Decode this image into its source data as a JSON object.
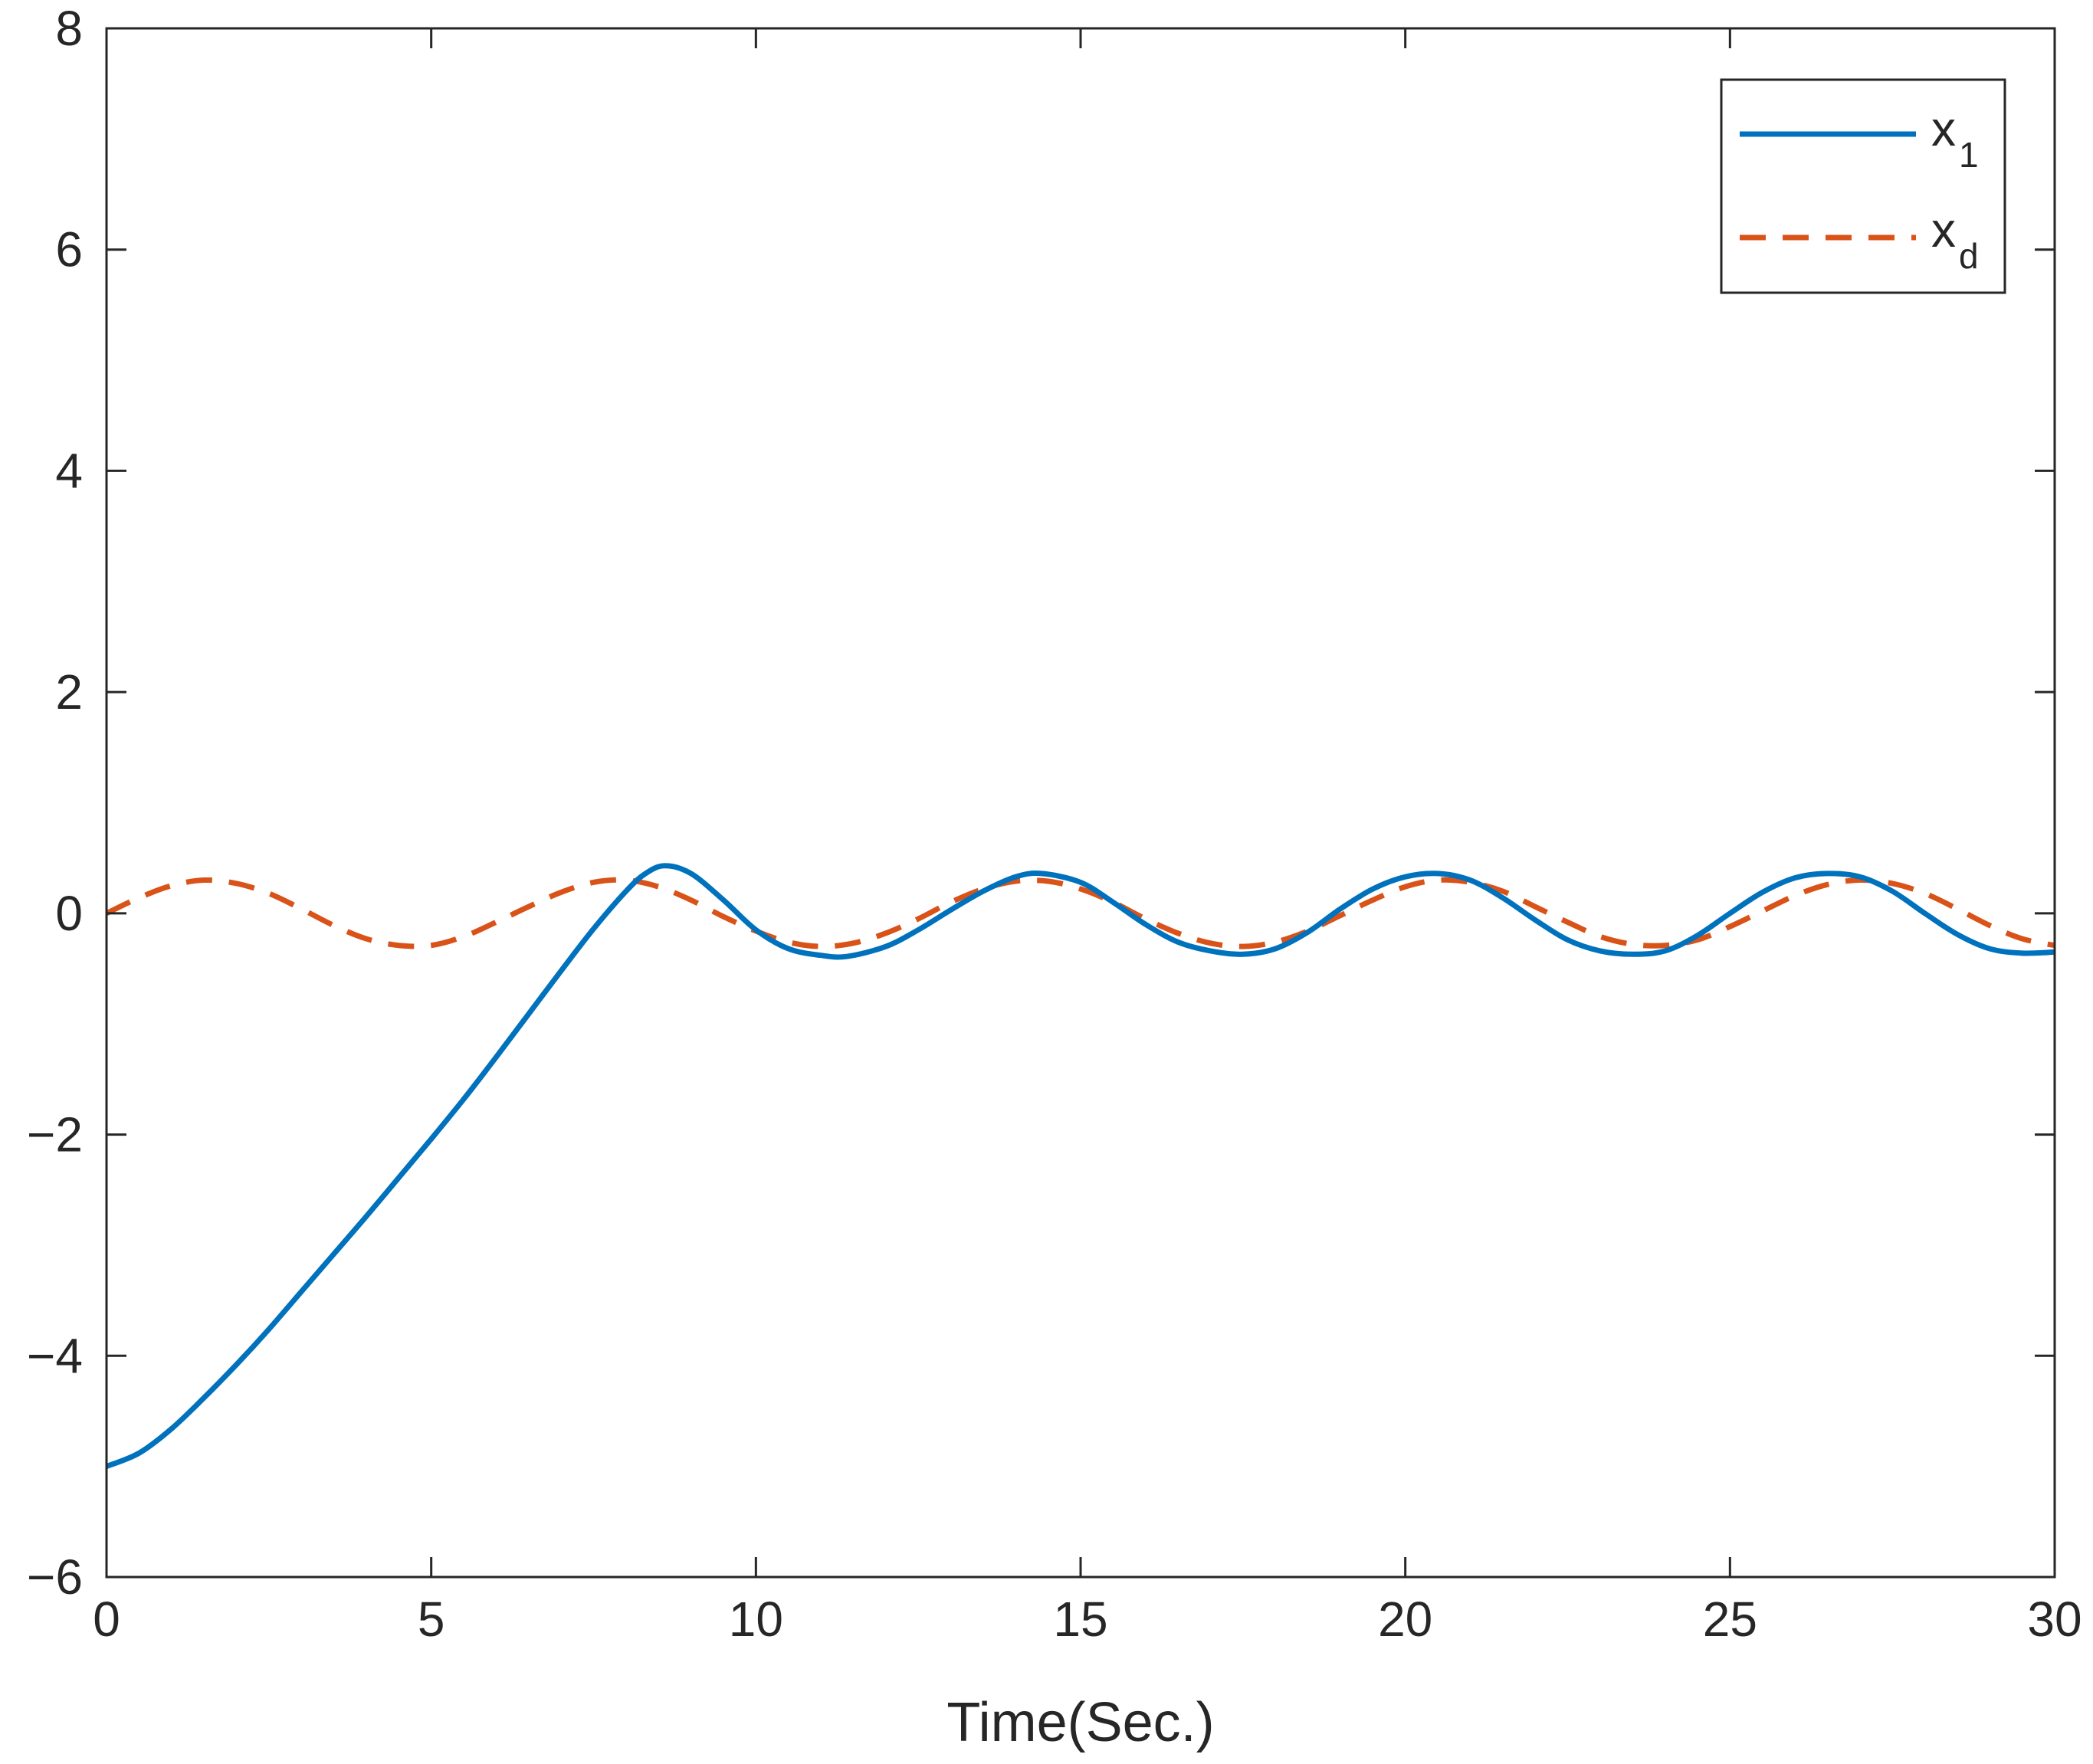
{
  "chart_data": {
    "type": "line",
    "title": "",
    "xlabel": "Time(Sec.)",
    "ylabel": "",
    "xlim": [
      0,
      30
    ],
    "ylim": [
      -6,
      8
    ],
    "xticks": [
      0,
      5,
      10,
      15,
      20,
      25,
      30
    ],
    "yticks": [
      -6,
      -4,
      -2,
      0,
      2,
      4,
      6,
      8
    ],
    "xtick_labels": [
      "0",
      "5",
      "10",
      "15",
      "20",
      "25",
      "30"
    ],
    "ytick_labels": [
      "-6",
      "-4",
      "-2",
      "0",
      "2",
      "4",
      "6",
      "8"
    ],
    "grid": false,
    "legend_position": "top-right",
    "series": [
      {
        "name": "x1",
        "legend_main": "x",
        "legend_sub": "1",
        "color": "#0072bd",
        "style": "solid",
        "x": [
          0,
          0.5,
          1,
          1.5,
          2,
          2.5,
          3,
          3.5,
          4,
          4.5,
          5,
          5.5,
          6,
          6.5,
          7,
          7.5,
          8,
          8.3,
          8.6,
          9,
          9.5,
          10,
          10.5,
          11,
          11.4,
          12,
          12.5,
          13,
          13.5,
          14,
          14.4,
          15,
          15.5,
          16,
          16.5,
          17,
          17.5,
          18,
          18.5,
          19,
          19.5,
          20,
          20.5,
          21,
          21.5,
          22,
          22.5,
          23,
          23.5,
          24,
          24.5,
          25,
          25.5,
          26,
          26.5,
          27,
          27.5,
          28,
          28.5,
          29,
          29.5,
          30
        ],
        "y": [
          -5.0,
          -4.88,
          -4.66,
          -4.38,
          -4.08,
          -3.76,
          -3.42,
          -3.08,
          -2.74,
          -2.39,
          -2.04,
          -1.68,
          -1.3,
          -0.91,
          -0.52,
          -0.14,
          0.2,
          0.36,
          0.43,
          0.36,
          0.12,
          -0.15,
          -0.32,
          -0.38,
          -0.39,
          -0.3,
          -0.15,
          0.03,
          0.2,
          0.33,
          0.36,
          0.28,
          0.1,
          -0.1,
          -0.26,
          -0.34,
          -0.37,
          -0.32,
          -0.17,
          0.04,
          0.22,
          0.33,
          0.36,
          0.3,
          0.14,
          -0.06,
          -0.24,
          -0.34,
          -0.37,
          -0.34,
          -0.2,
          0.0,
          0.19,
          0.32,
          0.36,
          0.33,
          0.2,
          0.0,
          -0.19,
          -0.32,
          -0.36,
          -0.35
        ]
      },
      {
        "name": "xd",
        "legend_main": "x",
        "legend_sub": "d",
        "color": "#d95319",
        "style": "dashed",
        "x": [
          0,
          0.5,
          1,
          1.5,
          2,
          2.5,
          3,
          3.5,
          4,
          4.5,
          5,
          5.5,
          6,
          6.5,
          7,
          7.5,
          8,
          8.5,
          9,
          9.5,
          10,
          10.5,
          11,
          11.5,
          12,
          12.5,
          13,
          13.5,
          14,
          14.5,
          15,
          15.5,
          16,
          16.5,
          17,
          17.5,
          18,
          18.5,
          19,
          19.5,
          20,
          20.5,
          21,
          21.5,
          22,
          22.5,
          23,
          23.5,
          24,
          24.5,
          25,
          25.5,
          26,
          26.5,
          27,
          27.5,
          28,
          28.5,
          29,
          29.5,
          30
        ],
        "y": [
          0.0,
          0.14,
          0.25,
          0.3,
          0.27,
          0.18,
          0.04,
          -0.11,
          -0.23,
          -0.29,
          -0.29,
          -0.21,
          -0.08,
          0.06,
          0.19,
          0.28,
          0.3,
          0.24,
          0.12,
          -0.03,
          -0.16,
          -0.26,
          -0.3,
          -0.27,
          -0.18,
          -0.05,
          0.1,
          0.22,
          0.29,
          0.29,
          0.22,
          0.1,
          -0.05,
          -0.18,
          -0.27,
          -0.3,
          -0.26,
          -0.16,
          -0.02,
          0.12,
          0.24,
          0.3,
          0.28,
          0.2,
          0.06,
          -0.08,
          -0.21,
          -0.28,
          -0.29,
          -0.24,
          -0.12,
          0.02,
          0.16,
          0.26,
          0.3,
          0.27,
          0.18,
          0.04,
          -0.11,
          -0.23,
          -0.29
        ]
      }
    ]
  },
  "colors": {
    "axis": "#262626",
    "background": "#ffffff"
  }
}
